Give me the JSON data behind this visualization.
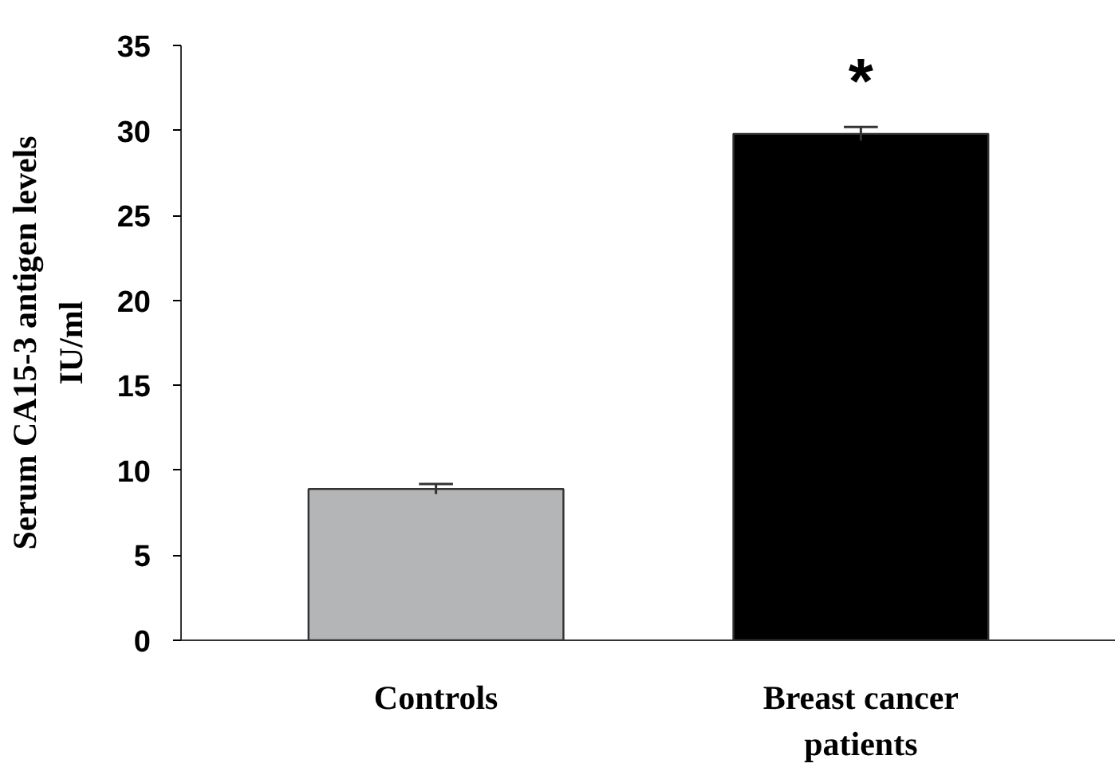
{
  "chart_data": {
    "type": "bar",
    "ylabel": "Serum CA15-3 antigen levels\nIU/ml",
    "categories": [
      "Controls",
      "Breast cancer patients"
    ],
    "values": [
      8.9,
      29.8
    ],
    "colors": [
      "#b3b5b6",
      "#000000"
    ],
    "errors": [
      0.3,
      0.4
    ],
    "ylim": [
      0,
      35
    ],
    "yticks": [
      0,
      5,
      10,
      15,
      20,
      25,
      30,
      35
    ],
    "annotations": [
      "*"
    ],
    "grid": false
  }
}
